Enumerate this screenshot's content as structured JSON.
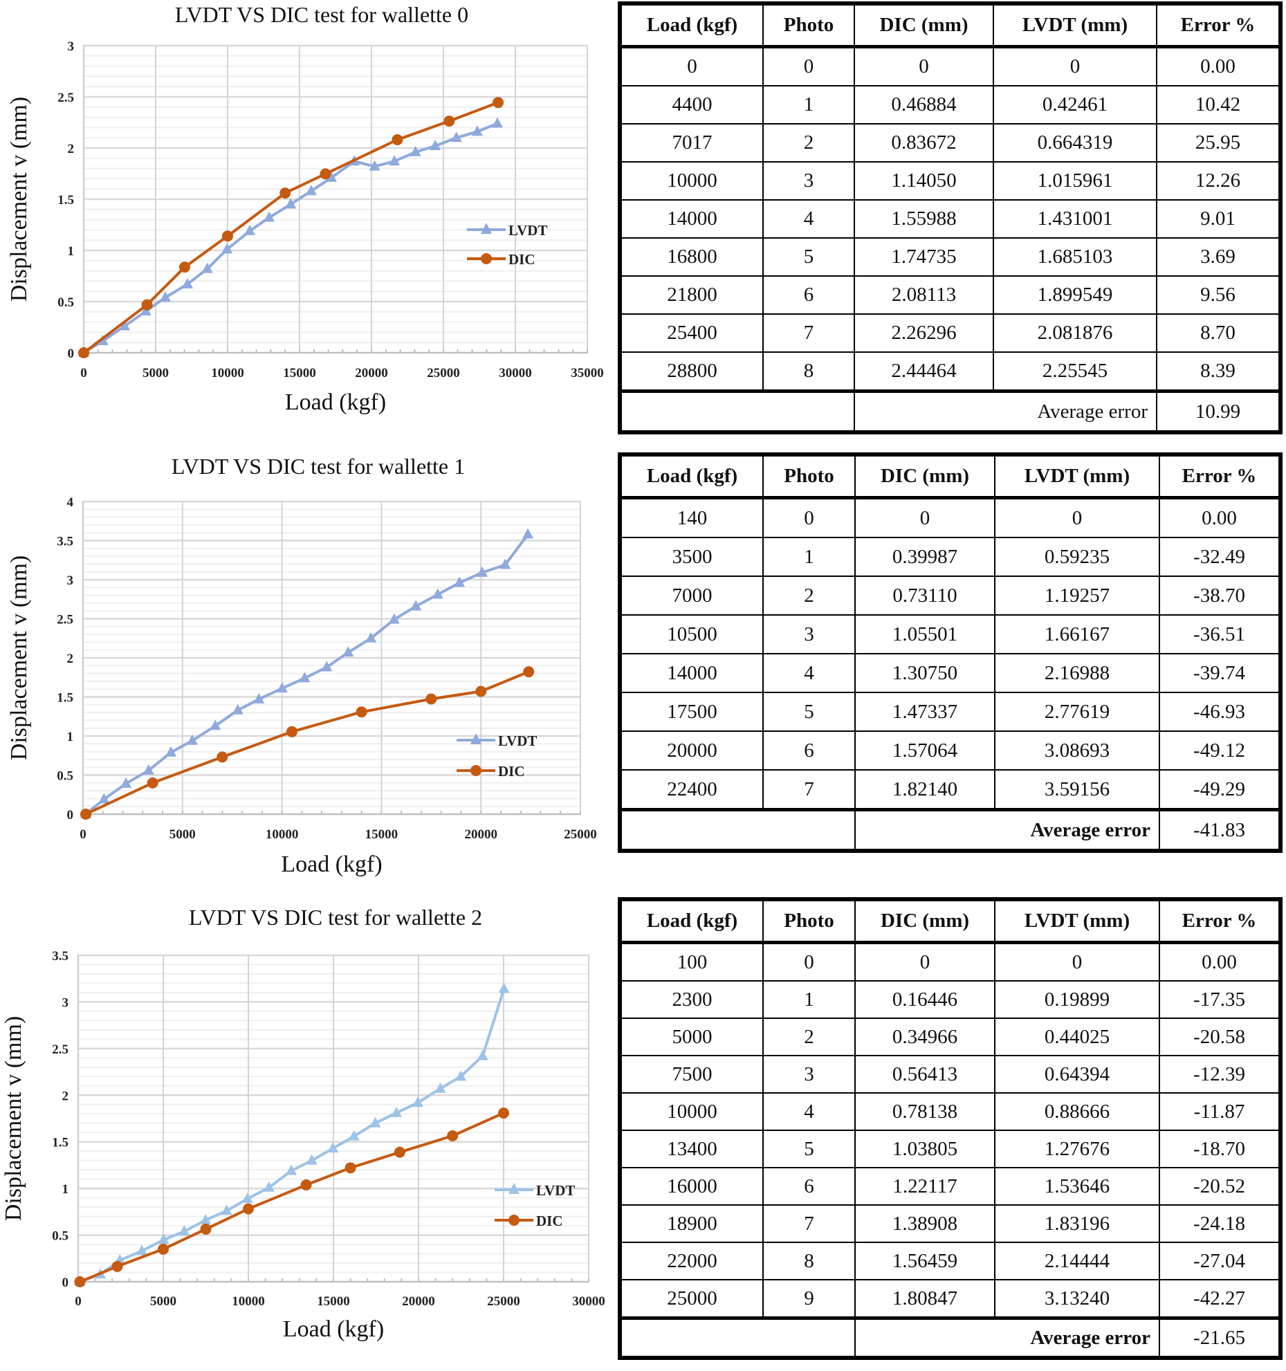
{
  "colors": {
    "lvdt": "#8faadc",
    "lvdt_light": "#9dc3e6",
    "dic": "#c55a11"
  },
  "table_headers": [
    "Load (kgf)",
    "Photo",
    "DIC (mm)",
    "LVDT (mm)",
    "Error %"
  ],
  "tables": [
    {
      "rows": [
        [
          "0",
          "0",
          "0",
          "0",
          "0.00"
        ],
        [
          "4400",
          "1",
          "0.46884",
          "0.42461",
          "10.42"
        ],
        [
          "7017",
          "2",
          "0.83672",
          "0.664319",
          "25.95"
        ],
        [
          "10000",
          "3",
          "1.14050",
          "1.015961",
          "12.26"
        ],
        [
          "14000",
          "4",
          "1.55988",
          "1.431001",
          "9.01"
        ],
        [
          "16800",
          "5",
          "1.74735",
          "1.685103",
          "3.69"
        ],
        [
          "21800",
          "6",
          "2.08113",
          "1.899549",
          "9.56"
        ],
        [
          "25400",
          "7",
          "2.26296",
          "2.081876",
          "8.70"
        ],
        [
          "28800",
          "8",
          "2.44464",
          "2.25545",
          "8.39"
        ]
      ],
      "average_label": "Average error",
      "average_value": "10.99"
    },
    {
      "rows": [
        [
          "140",
          "0",
          "0",
          "0",
          "0.00"
        ],
        [
          "3500",
          "1",
          "0.39987",
          "0.59235",
          "-32.49"
        ],
        [
          "7000",
          "2",
          "0.73110",
          "1.19257",
          "-38.70"
        ],
        [
          "10500",
          "3",
          "1.05501",
          "1.66167",
          "-36.51"
        ],
        [
          "14000",
          "4",
          "1.30750",
          "2.16988",
          "-39.74"
        ],
        [
          "17500",
          "5",
          "1.47337",
          "2.77619",
          "-46.93"
        ],
        [
          "20000",
          "6",
          "1.57064",
          "3.08693",
          "-49.12"
        ],
        [
          "22400",
          "7",
          "1.82140",
          "3.59156",
          "-49.29"
        ]
      ],
      "average_label": "Average error",
      "average_value": "-41.83"
    },
    {
      "rows": [
        [
          "100",
          "0",
          "0",
          "0",
          "0.00"
        ],
        [
          "2300",
          "1",
          "0.16446",
          "0.19899",
          "-17.35"
        ],
        [
          "5000",
          "2",
          "0.34966",
          "0.44025",
          "-20.58"
        ],
        [
          "7500",
          "3",
          "0.56413",
          "0.64394",
          "-12.39"
        ],
        [
          "10000",
          "4",
          "0.78138",
          "0.88666",
          "-11.87"
        ],
        [
          "13400",
          "5",
          "1.03805",
          "1.27676",
          "-18.70"
        ],
        [
          "16000",
          "6",
          "1.22117",
          "1.53646",
          "-20.52"
        ],
        [
          "18900",
          "7",
          "1.38908",
          "1.83196",
          "-24.18"
        ],
        [
          "22000",
          "8",
          "1.56459",
          "2.14444",
          "-27.04"
        ],
        [
          "25000",
          "9",
          "1.80847",
          "3.13240",
          "-42.27"
        ]
      ],
      "average_label": "Average error",
      "average_value": "-21.65"
    }
  ],
  "chart_data": [
    {
      "type": "line",
      "title": "LVDT VS DIC test for wallette 0",
      "xlabel": "Load (kgf)",
      "ylabel": "Displacement v (mm)",
      "xlim": [
        0,
        35000
      ],
      "xticks": [
        0,
        5000,
        10000,
        15000,
        20000,
        25000,
        30000,
        35000
      ],
      "ylim": [
        0,
        3
      ],
      "yticks": [
        0,
        0.5,
        1,
        1.5,
        2,
        2.5,
        3
      ],
      "yticklabels": [
        "0",
        "0.5",
        "1",
        "1.5",
        "2",
        "2.5",
        "3"
      ],
      "grid": true,
      "legend": {
        "position": "center-right",
        "entries": [
          "LVDT",
          "DIC"
        ]
      },
      "series": [
        {
          "name": "LVDT",
          "marker": "triangle",
          "x": [
            0,
            1330,
            2840,
            4310,
            5670,
            7210,
            8590,
            9960,
            11540,
            12890,
            14380,
            15810,
            17210,
            18800,
            20220,
            21590,
            23060,
            24430,
            25900,
            27350,
            28750
          ],
          "y": [
            0,
            0.115,
            0.26,
            0.405,
            0.54,
            0.67,
            0.82,
            1.01,
            1.19,
            1.32,
            1.45,
            1.58,
            1.71,
            1.87,
            1.82,
            1.87,
            1.96,
            2.02,
            2.1,
            2.16,
            2.24
          ]
        },
        {
          "name": "DIC",
          "marker": "circle",
          "x": [
            0,
            4400,
            7017,
            10000,
            14000,
            16800,
            21800,
            25400,
            28800
          ],
          "y": [
            0,
            0.46884,
            0.83672,
            1.1405,
            1.55988,
            1.74735,
            2.08113,
            2.26296,
            2.44464
          ]
        }
      ]
    },
    {
      "type": "line",
      "title": "LVDT VS DIC test for wallette 1",
      "xlabel": "Load (kgf)",
      "ylabel": "Displacement v (mm)",
      "xlim": [
        0,
        25000
      ],
      "xticks": [
        0,
        5000,
        10000,
        15000,
        20000,
        25000
      ],
      "ylim": [
        0,
        4
      ],
      "yticks": [
        0,
        0.5,
        1,
        1.5,
        2,
        2.5,
        3,
        3.5,
        4
      ],
      "yticklabels": [
        "0",
        "0.5",
        "1",
        "1.5",
        "2",
        "2.5",
        "3",
        "3.5",
        "4"
      ],
      "grid": true,
      "legend": {
        "position": "lower-right",
        "entries": [
          "LVDT",
          "DIC"
        ]
      },
      "series": [
        {
          "name": "LVDT",
          "marker": "triangle",
          "x": [
            140,
            1050,
            2160,
            3300,
            4420,
            5490,
            6650,
            7780,
            8840,
            10010,
            11140,
            12250,
            13330,
            14470,
            15640,
            16730,
            17830,
            18920,
            20060,
            21220,
            22360
          ],
          "y": [
            0,
            0.19,
            0.39,
            0.56,
            0.79,
            0.94,
            1.13,
            1.33,
            1.47,
            1.61,
            1.74,
            1.88,
            2.07,
            2.25,
            2.49,
            2.66,
            2.81,
            2.96,
            3.09,
            3.19,
            3.58
          ]
        },
        {
          "name": "DIC",
          "marker": "circle",
          "x": [
            140,
            3500,
            7000,
            10500,
            14000,
            17500,
            20000,
            22400
          ],
          "y": [
            0,
            0.39987,
            0.7311,
            1.05501,
            1.3075,
            1.47337,
            1.57064,
            1.8214
          ]
        }
      ]
    },
    {
      "type": "line",
      "title": "LVDT VS DIC test for wallette 2",
      "xlabel": "Load (kgf)",
      "ylabel": "Displacement v (mm)",
      "xlim": [
        0,
        30000
      ],
      "xticks": [
        0,
        5000,
        10000,
        15000,
        20000,
        25000,
        30000
      ],
      "ylim": [
        0,
        3.5
      ],
      "yticks": [
        0,
        0.5,
        1,
        1.5,
        2,
        2.5,
        3,
        3.5
      ],
      "yticklabels": [
        "0",
        "0.5",
        "1",
        "1.5",
        "2",
        "2.5",
        "3",
        "3.5"
      ],
      "grid": true,
      "legend": {
        "position": "lower-right",
        "entries": [
          "LVDT",
          "DIC"
        ]
      },
      "series": [
        {
          "name": "LVDT",
          "marker": "triangle",
          "x": [
            100,
            1300,
            2450,
            3740,
            5020,
            6230,
            7480,
            8720,
            9950,
            11210,
            12520,
            13730,
            14970,
            16210,
            17460,
            18700,
            19960,
            21280,
            22480,
            23770,
            25020
          ],
          "y": [
            0,
            0.08,
            0.23,
            0.33,
            0.45,
            0.54,
            0.66,
            0.76,
            0.89,
            1.01,
            1.19,
            1.3,
            1.43,
            1.56,
            1.7,
            1.81,
            1.92,
            2.07,
            2.2,
            2.42,
            3.14
          ]
        },
        {
          "name": "DIC",
          "marker": "circle",
          "x": [
            100,
            2300,
            5000,
            7500,
            10000,
            13400,
            16000,
            18900,
            22000,
            25000
          ],
          "y": [
            0,
            0.16446,
            0.34966,
            0.56413,
            0.78138,
            1.03805,
            1.22117,
            1.38908,
            1.56459,
            1.80847
          ]
        }
      ]
    }
  ]
}
